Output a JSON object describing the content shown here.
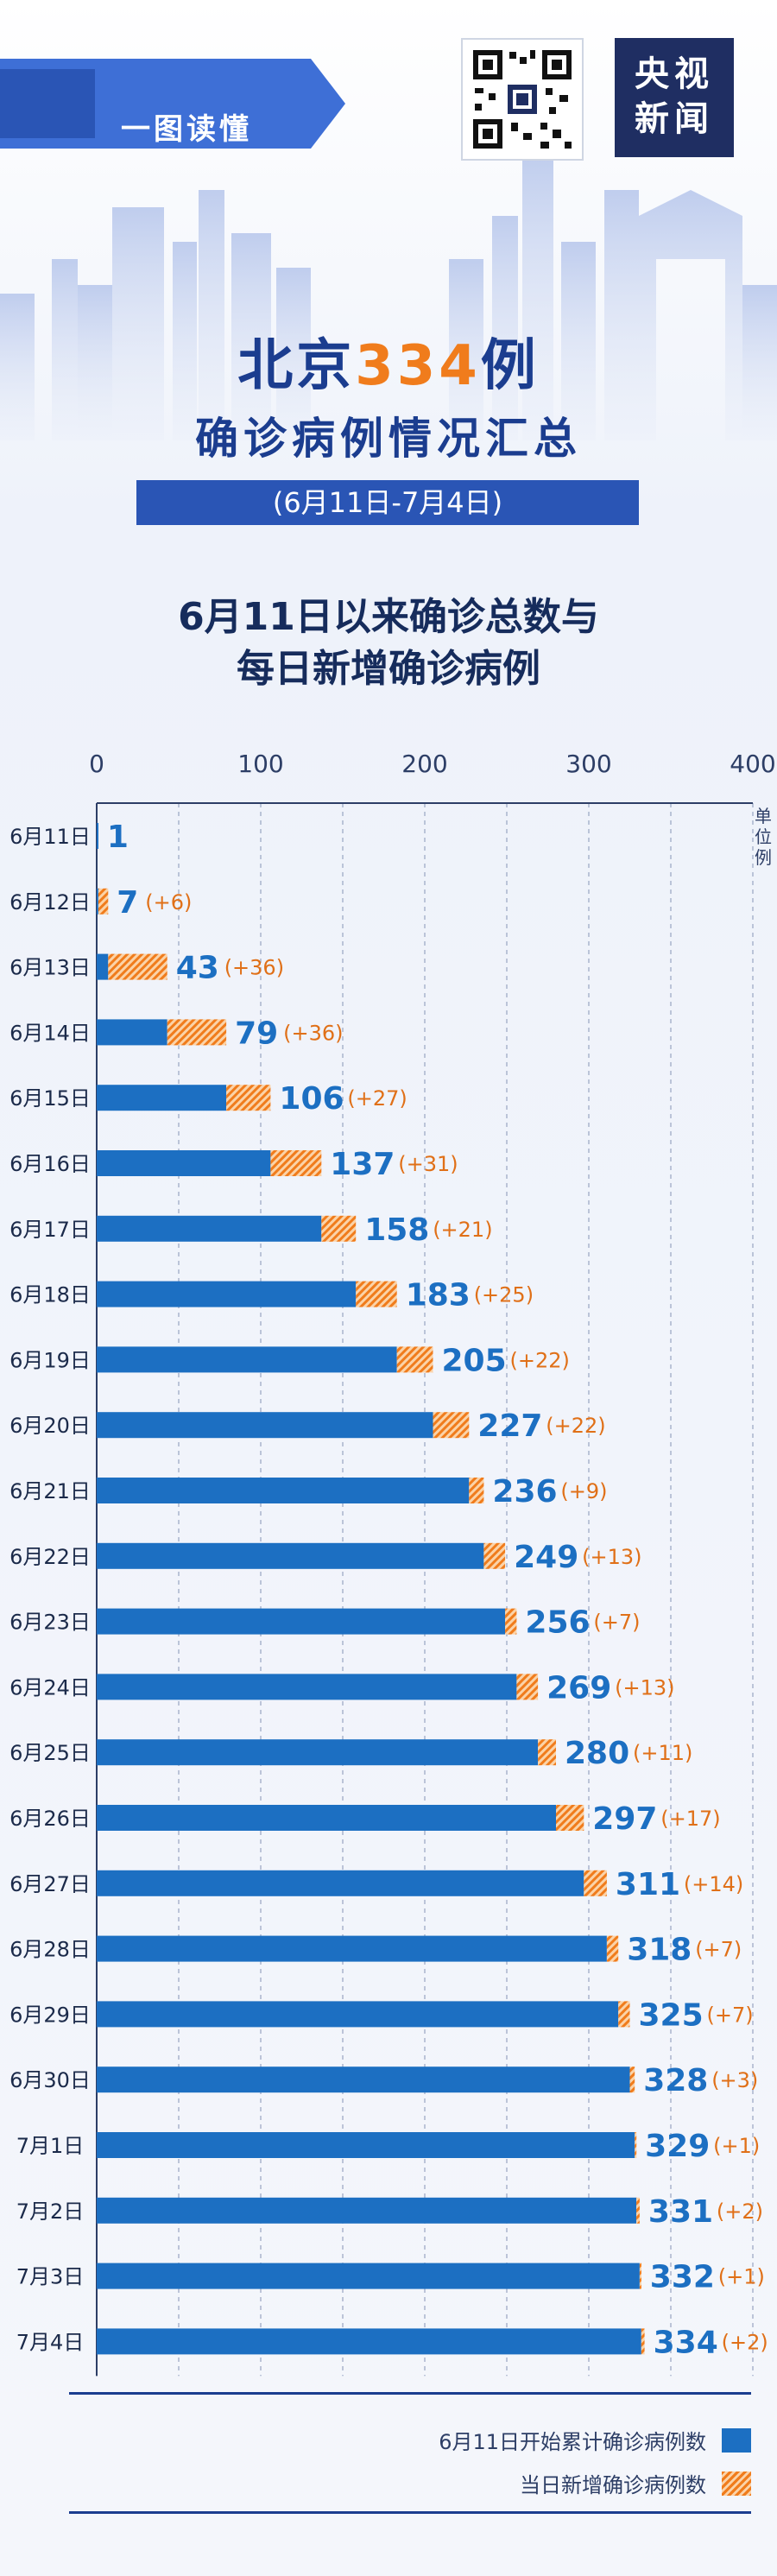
{
  "header": {
    "banner_label": "一图读懂",
    "logo_line1": "央视",
    "logo_line2": "新闻",
    "title_prefix": "北京",
    "title_number": "334",
    "title_suffix": "例",
    "subtitle": "确诊病例情况汇总",
    "period": "(6月11日-7月4日)"
  },
  "chart_heading": {
    "line1": "6月11日以来确诊总数与",
    "line2": "每日新增确诊病例"
  },
  "colors": {
    "cumulative": "#1c6fc2",
    "new_cases": "#f07c1c",
    "title": "#1b3d8f"
  },
  "chart_data": {
    "type": "bar",
    "orientation": "horizontal",
    "stacked": true,
    "unit_label": "单位例",
    "x_ticks": [
      0,
      100,
      200,
      300,
      400
    ],
    "xlim": [
      0,
      400
    ],
    "categories": [
      "6月11日",
      "6月12日",
      "6月13日",
      "6月14日",
      "6月15日",
      "6月16日",
      "6月17日",
      "6月18日",
      "6月19日",
      "6月20日",
      "6月21日",
      "6月22日",
      "6月23日",
      "6月24日",
      "6月25日",
      "6月26日",
      "6月27日",
      "6月28日",
      "6月29日",
      "6月30日",
      "7月1日",
      "7月2日",
      "7月3日",
      "7月4日"
    ],
    "totals": [
      1,
      7,
      43,
      79,
      106,
      137,
      158,
      183,
      205,
      227,
      236,
      249,
      256,
      269,
      280,
      297,
      311,
      318,
      325,
      328,
      329,
      331,
      332,
      334
    ],
    "new_cases": [
      1,
      6,
      36,
      36,
      27,
      31,
      21,
      25,
      22,
      22,
      9,
      13,
      7,
      13,
      11,
      17,
      14,
      7,
      7,
      3,
      1,
      2,
      1,
      2
    ],
    "new_labels": [
      "",
      "(+6)",
      "(+36)",
      "(+36)",
      "(+27)",
      "(+31)",
      "(+21)",
      "(+25)",
      "(+22)",
      "(+22)",
      "(+9)",
      "(+13)",
      "(+7)",
      "(+13)",
      "(+11)",
      "(+17)",
      "(+14)",
      "(+7)",
      "(+7)",
      "(+3)",
      "(+1)",
      "(+2)",
      "(+1)",
      "(+2)"
    ],
    "series": [
      {
        "name": "6月11日开始累计确诊病例数",
        "role": "cumulative_before"
      },
      {
        "name": "当日新增确诊病例数",
        "role": "daily_new"
      }
    ]
  },
  "legend": {
    "cumulative_label": "6月11日开始累计确诊病例数",
    "new_label": "当日新增确诊病例数"
  }
}
